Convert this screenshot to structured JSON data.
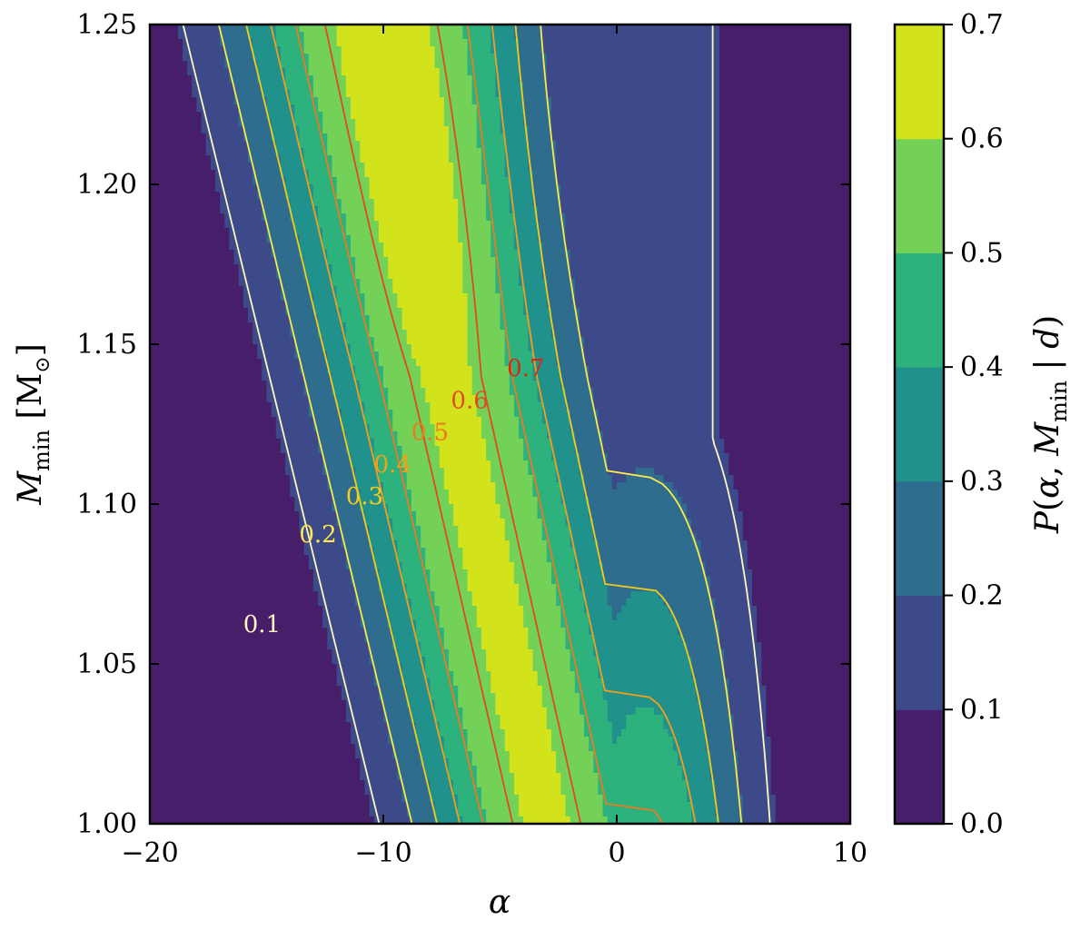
{
  "chart_data": {
    "type": "heatmap",
    "subtype": "filled-contour",
    "title": "",
    "xlabel": "α",
    "ylabel": "M_min [M_⊙]",
    "colorbar_label": "P(α, M_min | d)",
    "xlim": [
      -20,
      10
    ],
    "ylim": [
      1.0,
      1.25
    ],
    "x_ticks": [
      -20,
      -10,
      0,
      10
    ],
    "x_tick_labels": [
      "−20",
      "−10",
      "0",
      "10"
    ],
    "y_ticks": [
      1.0,
      1.05,
      1.1,
      1.15,
      1.2,
      1.25
    ],
    "y_tick_labels": [
      "1.00",
      "1.05",
      "1.10",
      "1.15",
      "1.20",
      "1.25"
    ],
    "colorbar_ticks": [
      0.0,
      0.1,
      0.2,
      0.3,
      0.4,
      0.5,
      0.6,
      0.7
    ],
    "colorbar_tick_labels": [
      "0.0",
      "0.1",
      "0.2",
      "0.3",
      "0.4",
      "0.5",
      "0.6",
      "0.7"
    ],
    "fill_levels": [
      {
        "range": [
          0.0,
          0.1
        ],
        "color": "#461e6a"
      },
      {
        "range": [
          0.1,
          0.2
        ],
        "color": "#3c4a89"
      },
      {
        "range": [
          0.2,
          0.3
        ],
        "color": "#2e6d8d"
      },
      {
        "range": [
          0.3,
          0.4
        ],
        "color": "#21918c"
      },
      {
        "range": [
          0.4,
          0.5
        ],
        "color": "#2db27d"
      },
      {
        "range": [
          0.5,
          0.6
        ],
        "color": "#72d156"
      },
      {
        "range": [
          0.6,
          0.7
        ],
        "color": "#d2e21b"
      }
    ],
    "contour_lines": [
      {
        "level": 0.1,
        "label": "0.1",
        "color": "#fff8c0",
        "label_pos": [
          -15.2,
          1.06
        ]
      },
      {
        "level": 0.2,
        "label": "0.2",
        "color": "#ffe94a",
        "label_pos": [
          -12.8,
          1.088
        ]
      },
      {
        "level": 0.3,
        "label": "0.3",
        "color": "#f4cd1a",
        "label_pos": [
          -10.8,
          1.1
        ]
      },
      {
        "level": 0.4,
        "label": "0.4",
        "color": "#f2a01c",
        "label_pos": [
          -9.6,
          1.11
        ]
      },
      {
        "level": 0.5,
        "label": "0.5",
        "color": "#ec7b1e",
        "label_pos": [
          -8.0,
          1.12
        ]
      },
      {
        "level": 0.6,
        "label": "0.6",
        "color": "#e04a1c",
        "label_pos": [
          -6.3,
          1.13
        ]
      },
      {
        "level": 0.7,
        "label": "0.7",
        "color": "#d42a14",
        "label_pos": [
          -3.9,
          1.14
        ]
      }
    ]
  }
}
